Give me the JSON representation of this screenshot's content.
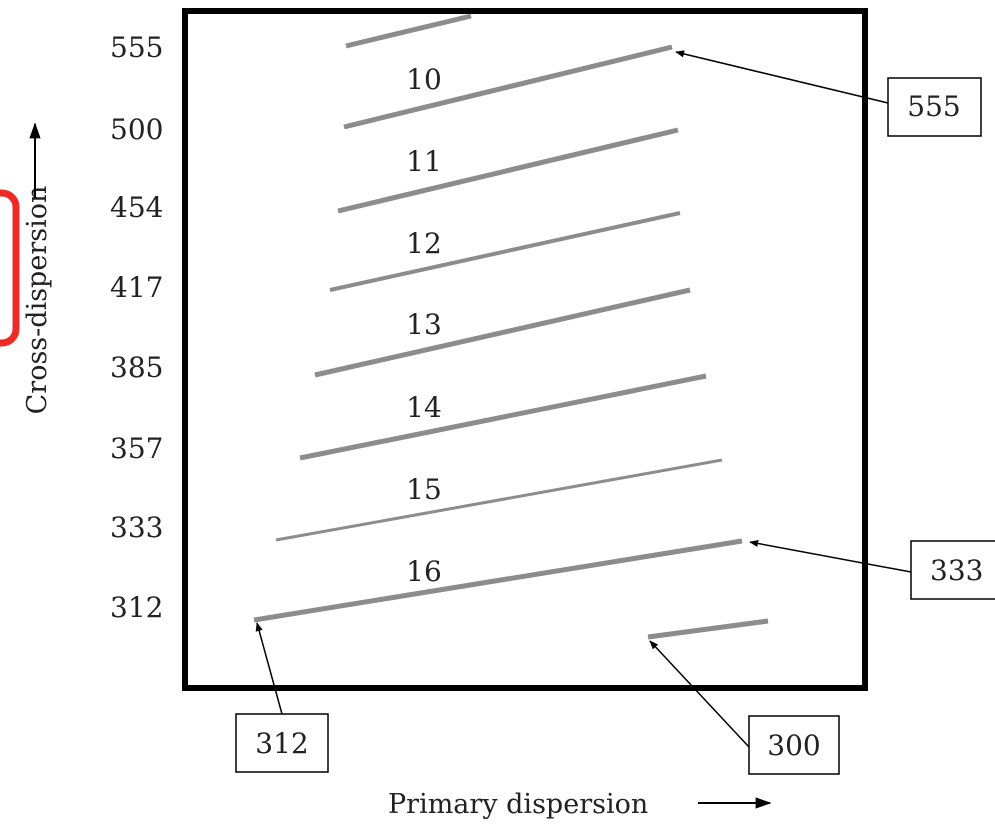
{
  "axes": {
    "y_label": "Cross-dispersion",
    "x_label": "Primary dispersion",
    "y_ticks": [
      "555",
      "500",
      "454",
      "417",
      "385",
      "357",
      "333",
      "312"
    ]
  },
  "orders": [
    {
      "label": ""
    },
    {
      "label": "10"
    },
    {
      "label": "11"
    },
    {
      "label": "12"
    },
    {
      "label": "13"
    },
    {
      "label": "14"
    },
    {
      "label": "15"
    },
    {
      "label": "16"
    },
    {
      "label": ""
    }
  ],
  "callouts": [
    {
      "label": "555"
    },
    {
      "label": "333"
    },
    {
      "label": "312"
    },
    {
      "label": "300"
    }
  ],
  "colors": {
    "frame": "#000000",
    "order_line": "#8c8c8c",
    "arrow": "#000000",
    "highlight": "#ee2a24"
  }
}
